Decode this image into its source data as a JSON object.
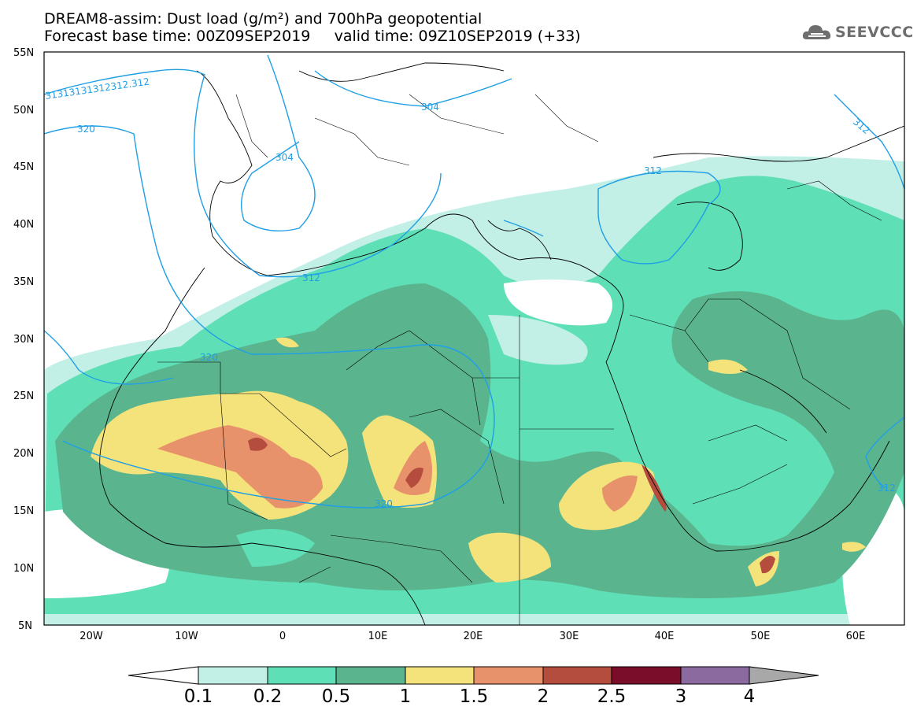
{
  "title": {
    "line1": "DREAM8-assim: Dust load (g/m²) and 700hPa geopotential",
    "line2": "Forecast base time: 00Z09SEP2019     valid time: 09Z10SEP2019 (+33)"
  },
  "logo": {
    "icon": "cloud-logo-icon",
    "text": "SEEVCCC"
  },
  "map": {
    "lon_range": [
      -25,
      65
    ],
    "lat_range": [
      5,
      55
    ],
    "lat_labels": [
      "55N",
      "50N",
      "45N",
      "40N",
      "35N",
      "30N",
      "25N",
      "20N",
      "15N",
      "10N",
      "5N"
    ],
    "lon_labels": [
      "20W",
      "10W",
      "0",
      "10E",
      "20E",
      "30E",
      "40E",
      "50E",
      "60E"
    ],
    "contour_labels": [
      "31313131312312.312",
      "320",
      "304",
      "304",
      "312",
      "312",
      "312",
      "320",
      "320",
      "312"
    ]
  },
  "colorbar": {
    "labels": [
      "0.1",
      "0.2",
      "0.5",
      "1",
      "1.5",
      "2",
      "2.5",
      "3",
      "4"
    ],
    "colors": [
      "#ffffff",
      "#c2efe6",
      "#5fdfb6",
      "#5ab58f",
      "#f4e27b",
      "#e8926b",
      "#b44d3e",
      "#7a0d2a",
      "#8b6aa0",
      "#a8a8a8"
    ]
  },
  "contour_color": "#1f9fe6"
}
